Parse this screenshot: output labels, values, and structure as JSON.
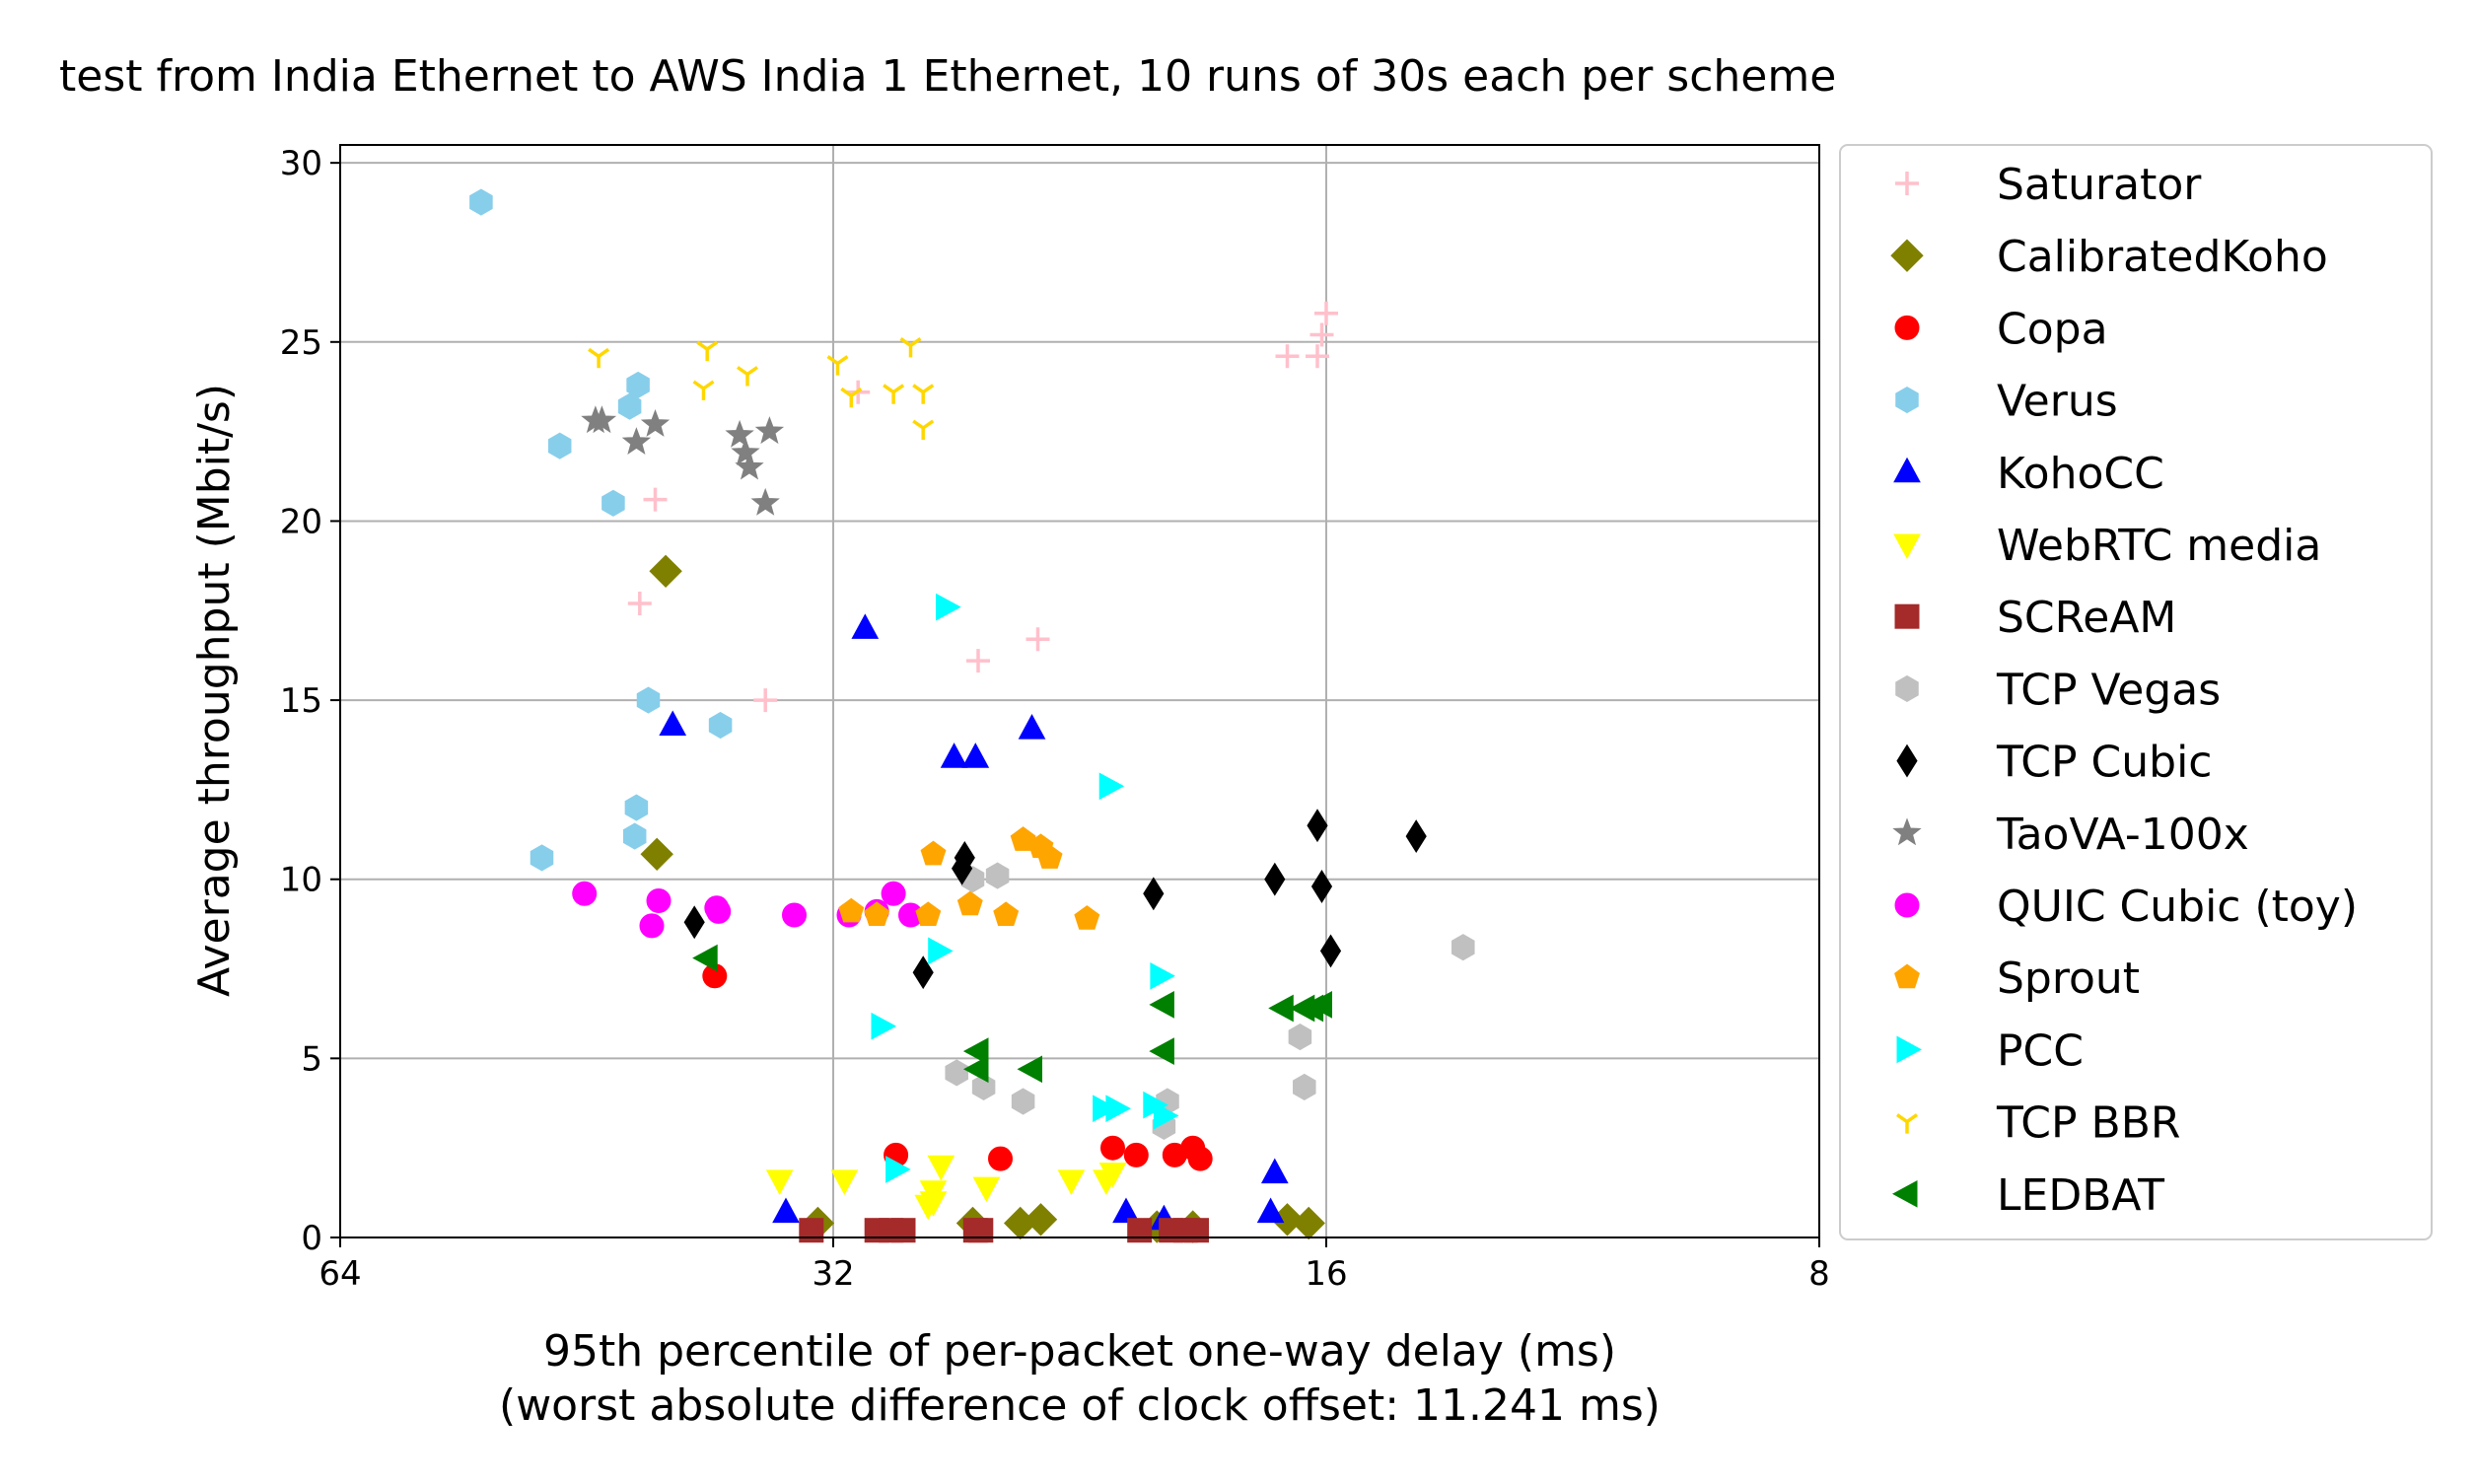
{
  "chart_data": {
    "type": "scatter",
    "title": "test from India Ethernet to AWS India 1 Ethernet, 10 runs of 30s each per scheme",
    "xlabel": "95th percentile of per-packet one-way delay (ms)",
    "xlabel2": "(worst absolute difference of clock offset: 11.241 ms)",
    "ylabel": "Average throughput (Mbit/s)",
    "x_scale": "log2",
    "x_inverted": true,
    "xlim": [
      64,
      8
    ],
    "ylim": [
      0,
      30.5
    ],
    "xticks": [
      64,
      32,
      16,
      8
    ],
    "xtick_labels": [
      "64",
      "32",
      "16",
      "8"
    ],
    "yticks": [
      0,
      5,
      10,
      15,
      20,
      25,
      30
    ],
    "ytick_labels": [
      "0",
      "5",
      "10",
      "15",
      "20",
      "25",
      "30"
    ],
    "grid": true,
    "legend_position": "outside-right",
    "series": [
      {
        "name": "Saturator",
        "color": "#ffc0cb",
        "marker": "plus",
        "points": [
          [
            41.1,
            20.6
          ],
          [
            42.0,
            17.7
          ],
          [
            35.2,
            15.0
          ],
          [
            30.9,
            23.6
          ],
          [
            26.1,
            16.1
          ],
          [
            24.0,
            16.7
          ],
          [
            16.9,
            24.6
          ],
          [
            16.2,
            24.6
          ],
          [
            16.1,
            25.2
          ],
          [
            16.0,
            25.8
          ]
        ]
      },
      {
        "name": "CalibratedKoho",
        "color": "#808000",
        "marker": "diamond",
        "points": [
          [
            40.5,
            18.6
          ],
          [
            41.0,
            10.7
          ],
          [
            32.7,
            0.4
          ],
          [
            26.3,
            0.4
          ],
          [
            24.6,
            0.4
          ],
          [
            23.9,
            0.5
          ],
          [
            20.3,
            0.3
          ],
          [
            19.3,
            0.3
          ],
          [
            16.9,
            0.5
          ],
          [
            16.4,
            0.4
          ]
        ]
      },
      {
        "name": "Copa",
        "color": "#ff0000",
        "marker": "circle",
        "points": [
          [
            37.8,
            7.3
          ],
          [
            29.3,
            2.3
          ],
          [
            25.3,
            2.2
          ],
          [
            21.6,
            2.5
          ],
          [
            20.9,
            2.3
          ],
          [
            19.8,
            2.3
          ],
          [
            19.3,
            2.5
          ],
          [
            19.1,
            2.2
          ]
        ]
      },
      {
        "name": "Verus",
        "color": "#87ceeb",
        "marker": "hexagon",
        "points": [
          [
            52.5,
            28.9
          ],
          [
            47.0,
            22.1
          ],
          [
            42.1,
            23.8
          ],
          [
            42.6,
            23.2
          ],
          [
            43.6,
            20.5
          ],
          [
            48.2,
            10.6
          ],
          [
            41.5,
            15.0
          ],
          [
            42.2,
            12.0
          ],
          [
            42.3,
            11.2
          ],
          [
            37.5,
            14.3
          ]
        ]
      },
      {
        "name": "KohoCC",
        "color": "#0000ff",
        "marker": "triangle-up",
        "points": [
          [
            40.1,
            14.3
          ],
          [
            30.6,
            17.0
          ],
          [
            27.0,
            13.4
          ],
          [
            26.2,
            13.4
          ],
          [
            24.2,
            14.2
          ],
          [
            34.2,
            0.7
          ],
          [
            21.2,
            0.7
          ],
          [
            20.1,
            0.5
          ],
          [
            17.2,
            1.8
          ],
          [
            17.3,
            0.7
          ]
        ]
      },
      {
        "name": "WebRTC media",
        "color": "#ffff00",
        "marker": "triangle-down",
        "points": [
          [
            34.5,
            1.6
          ],
          [
            31.5,
            1.6
          ],
          [
            28.0,
            0.9
          ],
          [
            27.8,
            1.3
          ],
          [
            27.5,
            2.0
          ],
          [
            25.8,
            1.4
          ],
          [
            22.9,
            1.6
          ],
          [
            21.8,
            1.6
          ],
          [
            21.6,
            1.8
          ],
          [
            27.8,
            1.0
          ]
        ]
      },
      {
        "name": "SCReAM",
        "color": "#a52a2a",
        "marker": "square",
        "points": [
          [
            33.0,
            0.2
          ],
          [
            30.1,
            0.2
          ],
          [
            29.0,
            0.2
          ],
          [
            26.2,
            0.2
          ],
          [
            20.8,
            0.2
          ],
          [
            19.9,
            0.2
          ],
          [
            19.2,
            0.2
          ],
          [
            29.5,
            0.2
          ],
          [
            19.5,
            0.2
          ],
          [
            26.0,
            0.2
          ]
        ]
      },
      {
        "name": "TCP Vegas",
        "color": "#c0c0c0",
        "marker": "hexagon",
        "points": [
          [
            26.9,
            4.6
          ],
          [
            26.3,
            10.0
          ],
          [
            25.4,
            10.1
          ],
          [
            25.9,
            4.2
          ],
          [
            24.5,
            3.8
          ],
          [
            20.1,
            3.1
          ],
          [
            20.0,
            3.8
          ],
          [
            16.6,
            5.6
          ],
          [
            16.5,
            4.2
          ],
          [
            13.2,
            8.1
          ]
        ]
      },
      {
        "name": "TCP Cubic",
        "color": "#000000",
        "marker": "thin-diamond",
        "points": [
          [
            38.9,
            8.8
          ],
          [
            28.2,
            7.4
          ],
          [
            26.7,
            10.3
          ],
          [
            26.6,
            10.6
          ],
          [
            20.4,
            9.6
          ],
          [
            17.2,
            10.0
          ],
          [
            16.2,
            11.5
          ],
          [
            16.1,
            9.8
          ],
          [
            15.9,
            8.0
          ],
          [
            14.1,
            11.2
          ]
        ]
      },
      {
        "name": "TaoVA-100x",
        "color": "#808080",
        "marker": "star",
        "points": [
          [
            44.7,
            22.8
          ],
          [
            44.3,
            22.8
          ],
          [
            42.2,
            22.2
          ],
          [
            41.1,
            22.7
          ],
          [
            36.5,
            22.4
          ],
          [
            36.2,
            21.9
          ],
          [
            36.0,
            21.5
          ],
          [
            35.0,
            22.5
          ],
          [
            35.2,
            20.5
          ]
        ]
      },
      {
        "name": "QUIC Cubic (toy)",
        "color": "#ff00ff",
        "marker": "circle",
        "points": [
          [
            45.4,
            9.6
          ],
          [
            41.3,
            8.7
          ],
          [
            40.9,
            9.4
          ],
          [
            37.7,
            9.2
          ],
          [
            33.8,
            9.0
          ],
          [
            31.3,
            9.0
          ],
          [
            30.1,
            9.1
          ],
          [
            29.4,
            9.6
          ],
          [
            28.7,
            9.0
          ],
          [
            37.6,
            9.1
          ]
        ]
      },
      {
        "name": "Sprout",
        "color": "#ffa500",
        "marker": "pentagon",
        "points": [
          [
            31.2,
            9.1
          ],
          [
            30.1,
            9.0
          ],
          [
            28.0,
            9.0
          ],
          [
            27.8,
            10.7
          ],
          [
            26.4,
            9.3
          ],
          [
            25.1,
            9.0
          ],
          [
            24.5,
            11.1
          ],
          [
            23.9,
            10.9
          ],
          [
            23.6,
            10.6
          ],
          [
            22.4,
            8.9
          ]
        ]
      },
      {
        "name": "PCC",
        "color": "#00ffff",
        "marker": "triangle-right",
        "points": [
          [
            27.3,
            17.6
          ],
          [
            21.7,
            12.6
          ],
          [
            27.6,
            8.0
          ],
          [
            29.9,
            5.9
          ],
          [
            29.3,
            1.9
          ],
          [
            21.9,
            3.6
          ],
          [
            20.4,
            3.7
          ],
          [
            20.1,
            3.4
          ],
          [
            20.2,
            7.3
          ],
          [
            21.5,
            3.6
          ]
        ]
      },
      {
        "name": "TCP BBR",
        "color": "#ffd700",
        "marker": "tri-down",
        "points": [
          [
            44.5,
            24.6
          ],
          [
            38.2,
            24.8
          ],
          [
            38.4,
            23.7
          ],
          [
            36.1,
            24.1
          ],
          [
            31.8,
            24.4
          ],
          [
            31.2,
            23.5
          ],
          [
            29.4,
            23.6
          ],
          [
            28.7,
            24.9
          ],
          [
            28.2,
            23.6
          ],
          [
            28.2,
            22.6
          ]
        ]
      },
      {
        "name": "LEDBAT",
        "color": "#008000",
        "marker": "triangle-left",
        "points": [
          [
            38.2,
            7.8
          ],
          [
            26.1,
            5.2
          ],
          [
            26.1,
            4.7
          ],
          [
            24.2,
            4.7
          ],
          [
            20.1,
            6.5
          ],
          [
            20.1,
            5.2
          ],
          [
            17.0,
            6.4
          ],
          [
            16.5,
            6.4
          ],
          [
            16.3,
            6.4
          ],
          [
            16.1,
            6.5
          ]
        ]
      }
    ]
  }
}
